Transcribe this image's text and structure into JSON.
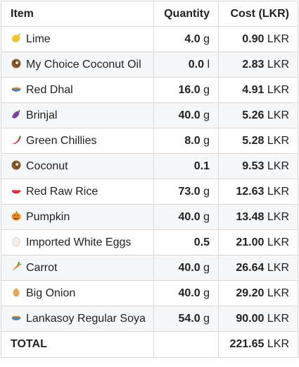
{
  "headers": {
    "item": "Item",
    "quantity": "Quantity",
    "cost": "Cost (LKR)"
  },
  "currency": "LKR",
  "rows": [
    {
      "icon": "lime-icon",
      "item": "Lime",
      "qty": "4.0",
      "unit": "g",
      "cost": "0.90"
    },
    {
      "icon": "coconut-icon",
      "item": "My Choice Coconut Oil",
      "qty": "0.0",
      "unit": "l",
      "cost": "2.83"
    },
    {
      "icon": "curry-bowl-icon",
      "item": "Red Dhal",
      "qty": "16.0",
      "unit": "g",
      "cost": "4.91"
    },
    {
      "icon": "eggplant-icon",
      "item": "Brinjal",
      "qty": "40.0",
      "unit": "g",
      "cost": "5.26"
    },
    {
      "icon": "chili-pepper-icon",
      "item": "Green Chillies",
      "qty": "8.0",
      "unit": "g",
      "cost": "5.28"
    },
    {
      "icon": "coconut-icon",
      "item": "Coconut",
      "qty": "0.1",
      "unit": "",
      "cost": "9.53"
    },
    {
      "icon": "rice-bowl-icon",
      "item": "Red Raw Rice",
      "qty": "73.0",
      "unit": "g",
      "cost": "12.63"
    },
    {
      "icon": "pumpkin-icon",
      "item": "Pumpkin",
      "qty": "40.0",
      "unit": "g",
      "cost": "13.48"
    },
    {
      "icon": "egg-icon",
      "item": "Imported White Eggs",
      "qty": "0.5",
      "unit": "",
      "cost": "21.00"
    },
    {
      "icon": "carrot-icon",
      "item": "Carrot",
      "qty": "40.0",
      "unit": "g",
      "cost": "26.64"
    },
    {
      "icon": "onion-icon",
      "item": "Big Onion",
      "qty": "40.0",
      "unit": "g",
      "cost": "29.20"
    },
    {
      "icon": "curry-bowl-icon",
      "item": "Lankasoy Regular Soya",
      "qty": "54.0",
      "unit": "g",
      "cost": "90.00"
    }
  ],
  "total": {
    "label": "TOTAL",
    "cost": "221.65"
  },
  "colors": {
    "border": "#d9d9d9",
    "stripe": "#f6f7f9",
    "text": "#222222"
  }
}
